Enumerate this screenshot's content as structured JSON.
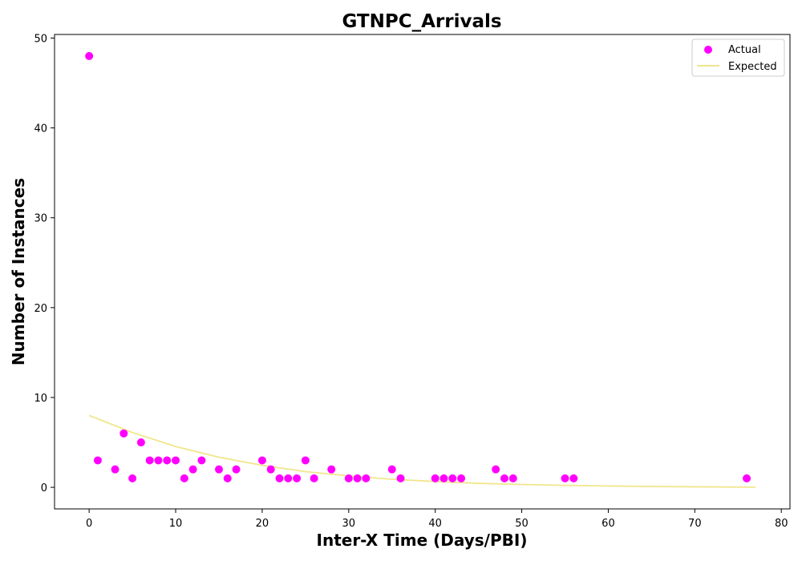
{
  "chart_data": {
    "type": "scatter",
    "title": "GTNPC_Arrivals",
    "xlabel": "Inter-X Time (Days/PBI)",
    "ylabel": "Number of Instances",
    "xlim": [
      -4,
      81
    ],
    "ylim": [
      -2.4,
      50.4
    ],
    "xticks": [
      0,
      10,
      20,
      30,
      40,
      50,
      60,
      70,
      80
    ],
    "yticks": [
      0,
      10,
      20,
      30,
      40,
      50
    ],
    "grid": false,
    "legend": "top-right",
    "series": [
      {
        "name": "Actual",
        "kind": "scatter",
        "color": "#ff00ff",
        "points": [
          [
            0,
            48
          ],
          [
            1,
            3
          ],
          [
            3,
            2
          ],
          [
            4,
            6
          ],
          [
            5,
            1
          ],
          [
            6,
            5
          ],
          [
            7,
            3
          ],
          [
            8,
            3
          ],
          [
            9,
            3
          ],
          [
            10,
            3
          ],
          [
            11,
            1
          ],
          [
            12,
            2
          ],
          [
            13,
            3
          ],
          [
            15,
            2
          ],
          [
            16,
            1
          ],
          [
            17,
            2
          ],
          [
            20,
            3
          ],
          [
            21,
            2
          ],
          [
            22,
            1
          ],
          [
            23,
            1
          ],
          [
            24,
            1
          ],
          [
            25,
            3
          ],
          [
            26,
            1
          ],
          [
            28,
            2
          ],
          [
            30,
            1
          ],
          [
            31,
            1
          ],
          [
            32,
            1
          ],
          [
            35,
            2
          ],
          [
            36,
            1
          ],
          [
            40,
            1
          ],
          [
            41,
            1
          ],
          [
            42,
            1
          ],
          [
            43,
            1
          ],
          [
            47,
            2
          ],
          [
            48,
            1
          ],
          [
            49,
            1
          ],
          [
            55,
            1
          ],
          [
            56,
            1
          ],
          [
            76,
            1
          ]
        ]
      },
      {
        "name": "Expected",
        "kind": "line",
        "color": "#f0e68c",
        "points": [
          [
            0,
            8.0
          ],
          [
            5,
            6.1
          ],
          [
            10,
            4.55
          ],
          [
            15,
            3.35
          ],
          [
            20,
            2.45
          ],
          [
            25,
            1.75
          ],
          [
            30,
            1.28
          ],
          [
            35,
            0.9
          ],
          [
            40,
            0.65
          ],
          [
            45,
            0.45
          ],
          [
            50,
            0.32
          ],
          [
            55,
            0.22
          ],
          [
            60,
            0.15
          ],
          [
            65,
            0.1
          ],
          [
            70,
            0.06
          ],
          [
            75,
            0.03
          ],
          [
            77,
            0.02
          ]
        ]
      }
    ]
  }
}
